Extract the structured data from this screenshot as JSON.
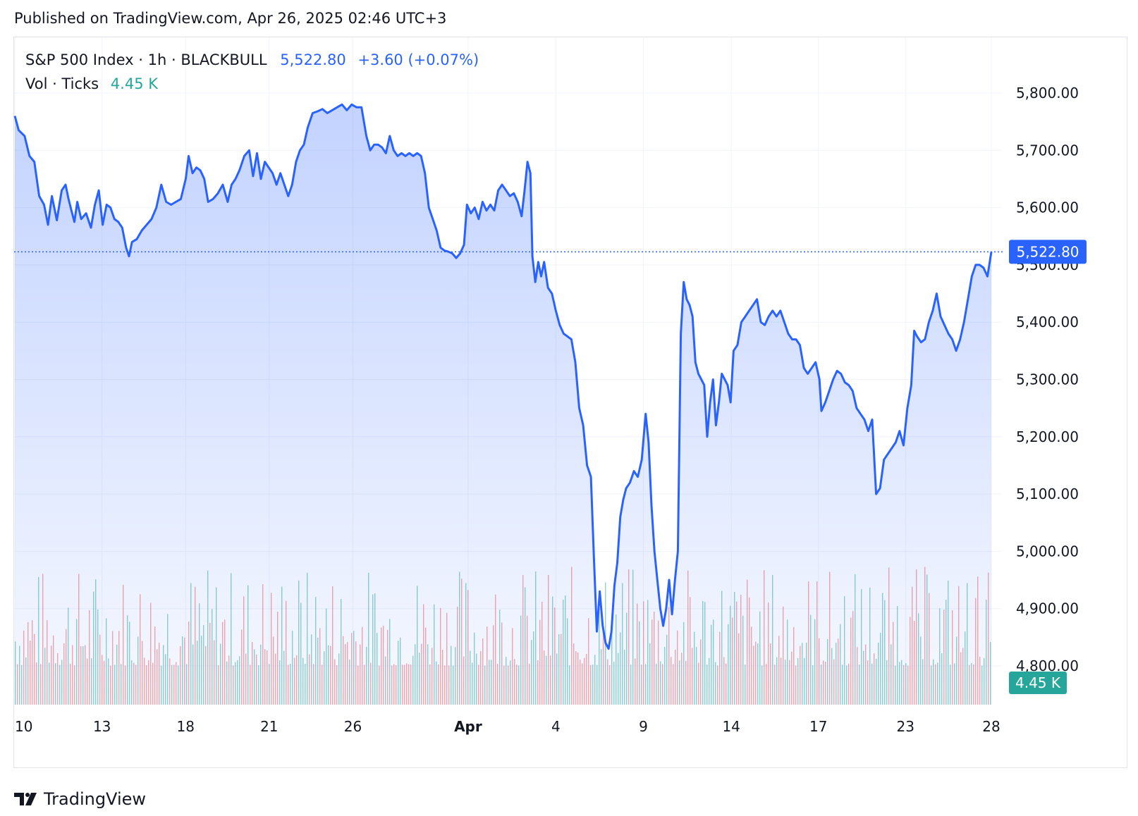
{
  "header": {
    "published": "Published on TradingView.com, Apr 26, 2025 02:46 UTC+3"
  },
  "legend": {
    "symbol": "S&P 500 Index · 1h · BLACKBULL",
    "price": "5,522.80",
    "change": "+3.60 (+0.07%)",
    "volume_label": "Vol · Ticks",
    "volume_value": "4.45 K"
  },
  "price_badge": "5,522.80",
  "volume_badge": "4.45 K",
  "footer": {
    "brand": "TradingView",
    "logo": "tradingview-logo-icon"
  },
  "colors": {
    "line": "#2962ff",
    "area": "#2962ff",
    "vol_up": "#26a69a",
    "vol_down": "#ef5350",
    "grid": "#f0f3fa"
  },
  "chart_data": {
    "type": "area",
    "title": "S&P 500 Index · 1h · BLACKBULL",
    "ylim": [
      4750,
      5850
    ],
    "yticks": [
      5800,
      5700,
      5600,
      5500,
      5400,
      5300,
      5200,
      5100,
      5000,
      4900,
      4800
    ],
    "ytick_labels": [
      "5,800.00",
      "5,700.00",
      "5,600.00",
      "5,500.00",
      "5,400.00",
      "5,300.00",
      "5,200.00",
      "5,100.00",
      "5,000.00",
      "4,900.00",
      "4,800.00"
    ],
    "xticks": [
      {
        "label": "10",
        "t": 0,
        "bold": false
      },
      {
        "label": "13",
        "t": 0.0893,
        "bold": false
      },
      {
        "label": "18",
        "t": 0.1749,
        "bold": false
      },
      {
        "label": "21",
        "t": 0.2605,
        "bold": false
      },
      {
        "label": "26",
        "t": 0.3462,
        "bold": false
      },
      {
        "label": "Apr",
        "t": 0.4642,
        "bold": true
      },
      {
        "label": "4",
        "t": 0.5541,
        "bold": false
      },
      {
        "label": "9",
        "t": 0.6437,
        "bold": false
      },
      {
        "label": "14",
        "t": 0.7337,
        "bold": false
      },
      {
        "label": "17",
        "t": 0.8229,
        "bold": false
      },
      {
        "label": "23",
        "t": 0.9121,
        "bold": false
      },
      {
        "label": "28",
        "t": 1.0,
        "bold": false
      }
    ],
    "last_price": 5522.8,
    "series": [
      {
        "name": "S&P 500 Index",
        "points": [
          [
            0.0,
            5760
          ],
          [
            0.004,
            5735
          ],
          [
            0.01,
            5725
          ],
          [
            0.015,
            5690
          ],
          [
            0.02,
            5680
          ],
          [
            0.025,
            5620
          ],
          [
            0.03,
            5605
          ],
          [
            0.034,
            5570
          ],
          [
            0.038,
            5620
          ],
          [
            0.043,
            5578
          ],
          [
            0.048,
            5630
          ],
          [
            0.052,
            5640
          ],
          [
            0.055,
            5615
          ],
          [
            0.058,
            5595
          ],
          [
            0.061,
            5575
          ],
          [
            0.064,
            5610
          ],
          [
            0.068,
            5580
          ],
          [
            0.073,
            5590
          ],
          [
            0.078,
            5565
          ],
          [
            0.082,
            5605
          ],
          [
            0.086,
            5630
          ],
          [
            0.09,
            5570
          ],
          [
            0.094,
            5605
          ],
          [
            0.098,
            5600
          ],
          [
            0.102,
            5580
          ],
          [
            0.106,
            5575
          ],
          [
            0.11,
            5565
          ],
          [
            0.114,
            5530
          ],
          [
            0.117,
            5515
          ],
          [
            0.12,
            5540
          ],
          [
            0.125,
            5545
          ],
          [
            0.13,
            5560
          ],
          [
            0.135,
            5570
          ],
          [
            0.14,
            5580
          ],
          [
            0.145,
            5600
          ],
          [
            0.15,
            5640
          ],
          [
            0.155,
            5610
          ],
          [
            0.16,
            5605
          ],
          [
            0.165,
            5610
          ],
          [
            0.17,
            5615
          ],
          [
            0.175,
            5650
          ],
          [
            0.178,
            5690
          ],
          [
            0.182,
            5660
          ],
          [
            0.186,
            5670
          ],
          [
            0.19,
            5665
          ],
          [
            0.194,
            5650
          ],
          [
            0.198,
            5610
          ],
          [
            0.203,
            5615
          ],
          [
            0.208,
            5625
          ],
          [
            0.213,
            5640
          ],
          [
            0.218,
            5610
          ],
          [
            0.222,
            5640
          ],
          [
            0.226,
            5650
          ],
          [
            0.23,
            5665
          ],
          [
            0.235,
            5690
          ],
          [
            0.24,
            5700
          ],
          [
            0.244,
            5655
          ],
          [
            0.248,
            5695
          ],
          [
            0.252,
            5650
          ],
          [
            0.256,
            5680
          ],
          [
            0.26,
            5670
          ],
          [
            0.264,
            5660
          ],
          [
            0.268,
            5640
          ],
          [
            0.272,
            5660
          ],
          [
            0.276,
            5640
          ],
          [
            0.28,
            5620
          ],
          [
            0.284,
            5640
          ],
          [
            0.288,
            5680
          ],
          [
            0.292,
            5700
          ],
          [
            0.296,
            5710
          ],
          [
            0.3,
            5740
          ],
          [
            0.305,
            5765
          ],
          [
            0.31,
            5768
          ],
          [
            0.315,
            5772
          ],
          [
            0.32,
            5765
          ],
          [
            0.325,
            5770
          ],
          [
            0.33,
            5775
          ],
          [
            0.335,
            5780
          ],
          [
            0.34,
            5770
          ],
          [
            0.345,
            5780
          ],
          [
            0.35,
            5775
          ],
          [
            0.355,
            5775
          ],
          [
            0.36,
            5725
          ],
          [
            0.364,
            5700
          ],
          [
            0.368,
            5710
          ],
          [
            0.372,
            5710
          ],
          [
            0.376,
            5705
          ],
          [
            0.38,
            5695
          ],
          [
            0.384,
            5725
          ],
          [
            0.388,
            5700
          ],
          [
            0.392,
            5690
          ],
          [
            0.396,
            5695
          ],
          [
            0.4,
            5690
          ],
          [
            0.404,
            5695
          ],
          [
            0.408,
            5690
          ],
          [
            0.412,
            5695
          ],
          [
            0.416,
            5690
          ],
          [
            0.42,
            5660
          ],
          [
            0.424,
            5600
          ],
          [
            0.428,
            5580
          ],
          [
            0.432,
            5560
          ],
          [
            0.436,
            5530
          ],
          [
            0.44,
            5525
          ],
          [
            0.444,
            5523
          ],
          [
            0.448,
            5520
          ],
          [
            0.452,
            5512
          ],
          [
            0.456,
            5520
          ],
          [
            0.46,
            5535
          ],
          [
            0.463,
            5605
          ],
          [
            0.467,
            5590
          ],
          [
            0.471,
            5600
          ],
          [
            0.475,
            5580
          ],
          [
            0.479,
            5610
          ],
          [
            0.483,
            5595
          ],
          [
            0.487,
            5605
          ],
          [
            0.491,
            5595
          ],
          [
            0.495,
            5630
          ],
          [
            0.499,
            5640
          ],
          [
            0.503,
            5630
          ],
          [
            0.507,
            5620
          ],
          [
            0.511,
            5625
          ],
          [
            0.515,
            5610
          ],
          [
            0.519,
            5585
          ],
          [
            0.522,
            5630
          ],
          [
            0.525,
            5680
          ],
          [
            0.528,
            5660
          ],
          [
            0.53,
            5515
          ],
          [
            0.533,
            5470
          ],
          [
            0.536,
            5505
          ],
          [
            0.539,
            5480
          ],
          [
            0.542,
            5505
          ],
          [
            0.546,
            5460
          ],
          [
            0.55,
            5450
          ],
          [
            0.554,
            5420
          ],
          [
            0.558,
            5395
          ],
          [
            0.562,
            5380
          ],
          [
            0.566,
            5375
          ],
          [
            0.57,
            5370
          ],
          [
            0.574,
            5330
          ],
          [
            0.578,
            5250
          ],
          [
            0.582,
            5220
          ],
          [
            0.586,
            5150
          ],
          [
            0.59,
            5130
          ],
          [
            0.593,
            4990
          ],
          [
            0.596,
            4860
          ],
          [
            0.599,
            4930
          ],
          [
            0.602,
            4870
          ],
          [
            0.605,
            4840
          ],
          [
            0.608,
            4830
          ],
          [
            0.611,
            4860
          ],
          [
            0.614,
            4940
          ],
          [
            0.617,
            4980
          ],
          [
            0.62,
            5060
          ],
          [
            0.623,
            5090
          ],
          [
            0.626,
            5110
          ],
          [
            0.63,
            5120
          ],
          [
            0.634,
            5140
          ],
          [
            0.638,
            5130
          ],
          [
            0.642,
            5160
          ],
          [
            0.646,
            5240
          ],
          [
            0.649,
            5190
          ],
          [
            0.652,
            5080
          ],
          [
            0.655,
            5000
          ],
          [
            0.658,
            4950
          ],
          [
            0.661,
            4900
          ],
          [
            0.664,
            4870
          ],
          [
            0.667,
            4900
          ],
          [
            0.67,
            4950
          ],
          [
            0.673,
            4890
          ],
          [
            0.676,
            4950
          ],
          [
            0.679,
            5000
          ],
          [
            0.682,
            5380
          ],
          [
            0.685,
            5470
          ],
          [
            0.688,
            5440
          ],
          [
            0.691,
            5430
          ],
          [
            0.694,
            5410
          ],
          [
            0.697,
            5330
          ],
          [
            0.7,
            5310
          ],
          [
            0.703,
            5300
          ],
          [
            0.706,
            5290
          ],
          [
            0.709,
            5200
          ],
          [
            0.712,
            5260
          ],
          [
            0.715,
            5300
          ],
          [
            0.718,
            5220
          ],
          [
            0.721,
            5260
          ],
          [
            0.724,
            5310
          ],
          [
            0.727,
            5300
          ],
          [
            0.73,
            5290
          ],
          [
            0.733,
            5260
          ],
          [
            0.736,
            5350
          ],
          [
            0.74,
            5360
          ],
          [
            0.744,
            5400
          ],
          [
            0.748,
            5410
          ],
          [
            0.752,
            5420
          ],
          [
            0.756,
            5430
          ],
          [
            0.76,
            5440
          ],
          [
            0.764,
            5400
          ],
          [
            0.768,
            5395
          ],
          [
            0.772,
            5410
          ],
          [
            0.776,
            5420
          ],
          [
            0.78,
            5410
          ],
          [
            0.784,
            5420
          ],
          [
            0.788,
            5400
          ],
          [
            0.792,
            5380
          ],
          [
            0.796,
            5370
          ],
          [
            0.8,
            5370
          ],
          [
            0.804,
            5360
          ],
          [
            0.808,
            5320
          ],
          [
            0.812,
            5310
          ],
          [
            0.816,
            5320
          ],
          [
            0.82,
            5330
          ],
          [
            0.824,
            5300
          ],
          [
            0.826,
            5245
          ],
          [
            0.83,
            5260
          ],
          [
            0.834,
            5280
          ],
          [
            0.838,
            5300
          ],
          [
            0.842,
            5315
          ],
          [
            0.846,
            5310
          ],
          [
            0.85,
            5295
          ],
          [
            0.854,
            5290
          ],
          [
            0.858,
            5280
          ],
          [
            0.862,
            5250
          ],
          [
            0.866,
            5240
          ],
          [
            0.87,
            5230
          ],
          [
            0.874,
            5210
          ],
          [
            0.878,
            5230
          ],
          [
            0.882,
            5100
          ],
          [
            0.886,
            5110
          ],
          [
            0.89,
            5160
          ],
          [
            0.894,
            5170
          ],
          [
            0.898,
            5180
          ],
          [
            0.902,
            5190
          ],
          [
            0.906,
            5210
          ],
          [
            0.91,
            5185
          ],
          [
            0.914,
            5250
          ],
          [
            0.918,
            5290
          ],
          [
            0.921,
            5385
          ],
          [
            0.924,
            5375
          ],
          [
            0.928,
            5365
          ],
          [
            0.932,
            5370
          ],
          [
            0.936,
            5400
          ],
          [
            0.94,
            5420
          ],
          [
            0.944,
            5450
          ],
          [
            0.948,
            5410
          ],
          [
            0.952,
            5395
          ],
          [
            0.956,
            5380
          ],
          [
            0.96,
            5370
          ],
          [
            0.964,
            5350
          ],
          [
            0.968,
            5370
          ],
          [
            0.972,
            5400
          ],
          [
            0.976,
            5440
          ],
          [
            0.98,
            5480
          ],
          [
            0.984,
            5500
          ],
          [
            0.988,
            5500
          ],
          [
            0.992,
            5495
          ],
          [
            0.996,
            5480
          ],
          [
            1.0,
            5522.8
          ]
        ]
      }
    ]
  }
}
